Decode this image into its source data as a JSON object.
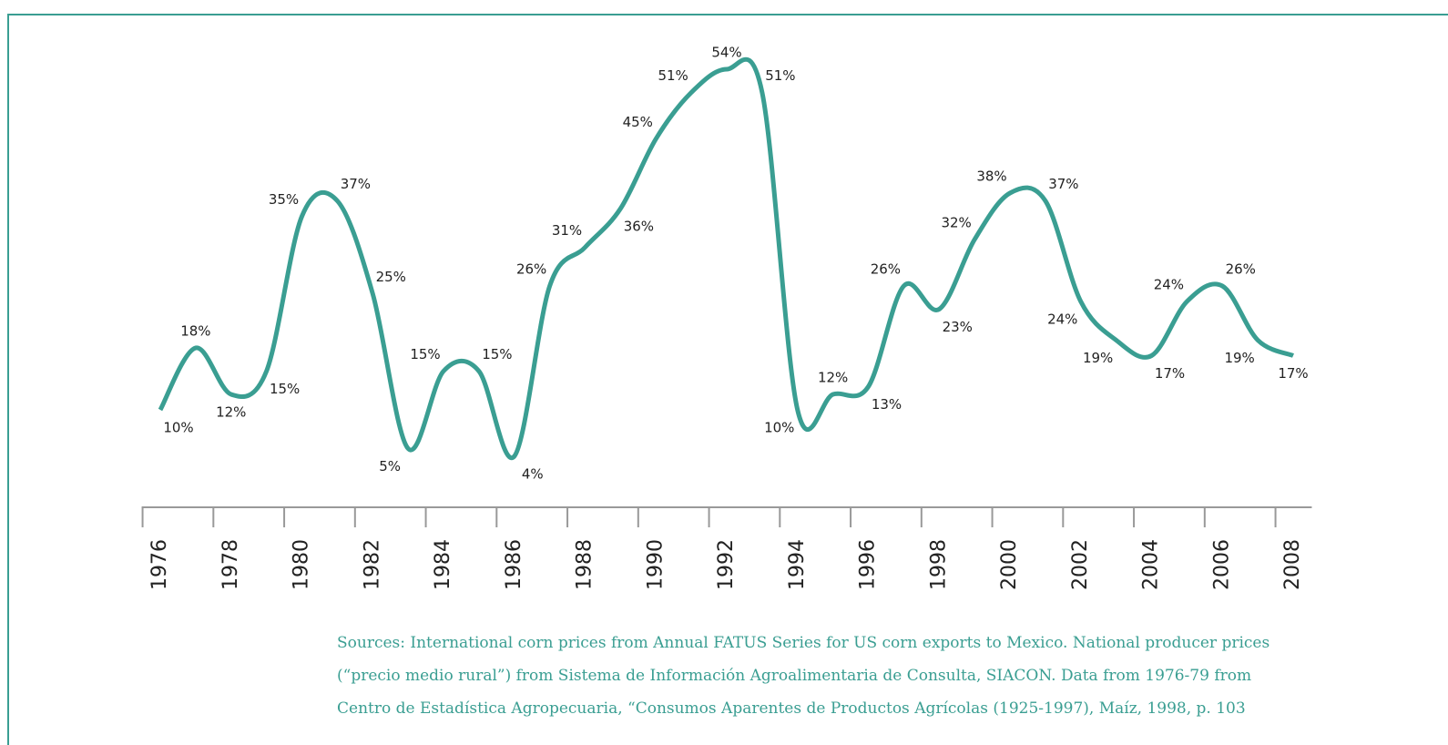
{
  "chart_data": {
    "type": "line",
    "categories": [
      "1976",
      null,
      "1978",
      null,
      "1980",
      null,
      "1982",
      null,
      "1984",
      null,
      "1986",
      null,
      "1988",
      null,
      "1990",
      null,
      "1992",
      null,
      "1994",
      null,
      "1996",
      null,
      "1998",
      null,
      "2000",
      null,
      "2002",
      null,
      "2004",
      null,
      "2006",
      null,
      "2008"
    ],
    "series": [
      {
        "color": "#3a9e92",
        "values": [
          10,
          18,
          12,
          15,
          35,
          37,
          25,
          5,
          15,
          15,
          4,
          26,
          31,
          36,
          45,
          51,
          54,
          51,
          10,
          12,
          13,
          26,
          23,
          32,
          38,
          37,
          24,
          19,
          17,
          24,
          26,
          19,
          17
        ],
        "value_labels": [
          "10%",
          "18%",
          "12%",
          "15%",
          "35%",
          "37%",
          "25%",
          "5%",
          "15%",
          "15%",
          "4%",
          "26%",
          "31%",
          "36%",
          "45%",
          "51%",
          "54%",
          "51%",
          "10%",
          "12%",
          "13%",
          "26%",
          "23%",
          "32%",
          "38%",
          "37%",
          "24%",
          "19%",
          "17%",
          "24%",
          "26%",
          "19%",
          "17%"
        ]
      }
    ],
    "ylim": [
      0,
      60
    ],
    "source_lines": [
      "Sources: International corn prices from Annual FATUS Series for US corn exports to Mexico. National producer prices",
      "(“precio medio rural”) from Sistema de Información Agroalimentaria de Consulta, SIACON. Data from 1976-79 from",
      "Centro de Estadística Agropecuaria, “Consumos Aparentes de Productos Agrícolas (1925-1997), Maíz, 1998, p. 103"
    ]
  }
}
